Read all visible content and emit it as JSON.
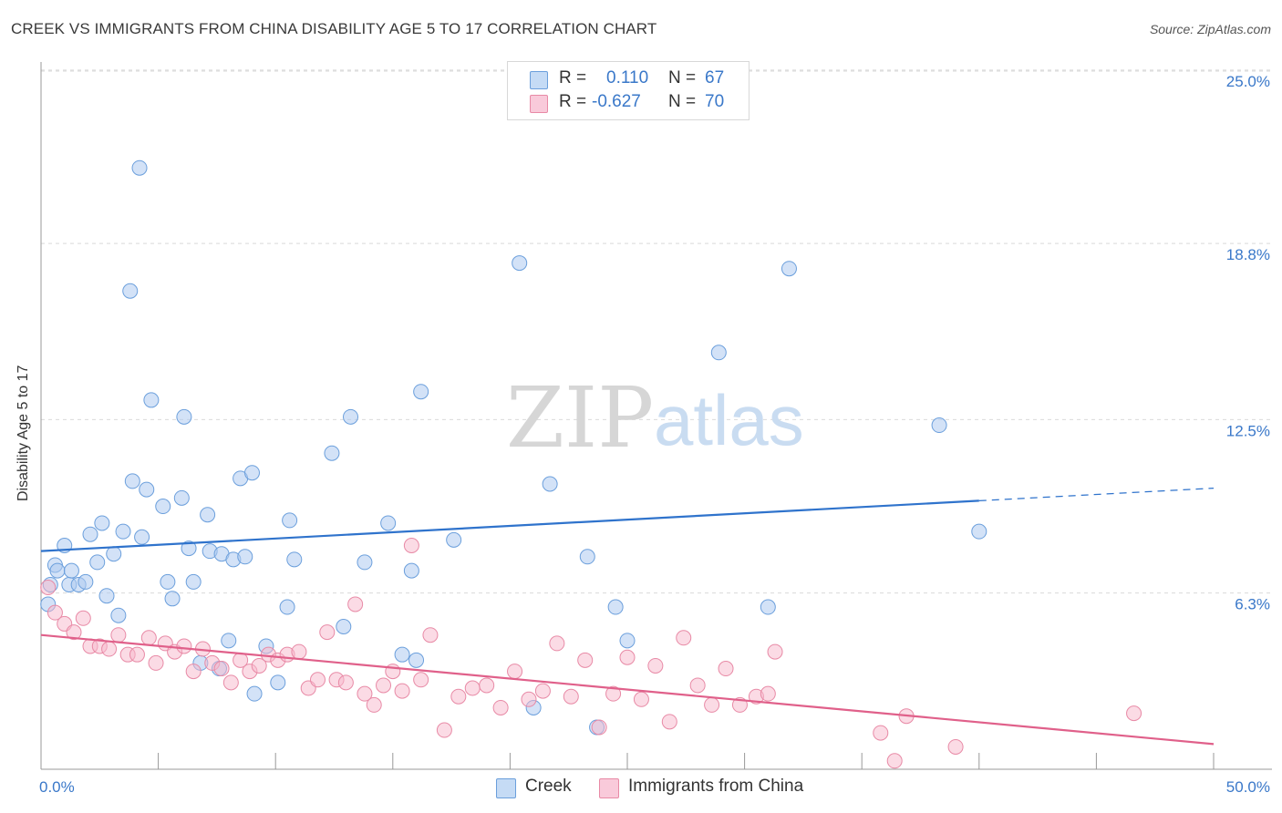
{
  "header": {
    "title": "CREEK VS IMMIGRANTS FROM CHINA DISABILITY AGE 5 TO 17 CORRELATION CHART",
    "source": "Source: ZipAtlas.com"
  },
  "watermark": {
    "zip": "ZIP",
    "atlas": "atlas"
  },
  "legend_top": {
    "rows": [
      {
        "r_label": "R =",
        "r_value": "0.110",
        "n_label": "N =",
        "n_value": "67"
      },
      {
        "r_label": "R =",
        "r_value": "-0.627",
        "n_label": "N =",
        "n_value": "70"
      }
    ]
  },
  "legend_bottom": {
    "creek": "Creek",
    "china": "Immigrants from China"
  },
  "colors": {
    "creek_fill": "#aecbf0",
    "creek_stroke": "#6b9fdc",
    "creek_line": "#2f73cc",
    "china_fill": "#f7b8cc",
    "china_stroke": "#e88aa6",
    "china_line": "#e0608a",
    "tick_text": "#3a78c9",
    "grid": "#d9d9d9"
  },
  "chart_data": {
    "type": "scatter",
    "title": "CREEK VS IMMIGRANTS FROM CHINA DISABILITY AGE 5 TO 17 CORRELATION CHART",
    "xlabel": "",
    "ylabel": "Disability Age 5 to 17",
    "xlim": [
      0,
      50
    ],
    "ylim": [
      0,
      26.2
    ],
    "x_tick_labels": [
      {
        "value": 0,
        "label": "0.0%"
      },
      {
        "value": 50,
        "label": "50.0%"
      }
    ],
    "y_tick_labels": [
      {
        "value": 6.3,
        "label": "6.3%"
      },
      {
        "value": 12.5,
        "label": "12.5%"
      },
      {
        "value": 18.8,
        "label": "18.8%"
      },
      {
        "value": 25.0,
        "label": "25.0%"
      }
    ],
    "grid": true,
    "legend_position": "top-center",
    "series": [
      {
        "name": "Creek",
        "r": 0.11,
        "n": 67,
        "trend": {
          "x0": 0,
          "y0": 7.8,
          "x1": 40,
          "y1": 9.6,
          "dashed_to_x": 50,
          "dashed_to_y": 10.05
        },
        "points": [
          [
            0.3,
            5.9
          ],
          [
            0.4,
            6.6
          ],
          [
            0.6,
            7.3
          ],
          [
            0.7,
            7.1
          ],
          [
            1.0,
            8.0
          ],
          [
            1.2,
            6.6
          ],
          [
            1.3,
            7.1
          ],
          [
            1.6,
            6.6
          ],
          [
            1.9,
            6.7
          ],
          [
            2.1,
            8.4
          ],
          [
            2.4,
            7.4
          ],
          [
            2.6,
            8.8
          ],
          [
            2.8,
            6.2
          ],
          [
            3.1,
            7.7
          ],
          [
            3.3,
            5.5
          ],
          [
            3.5,
            8.5
          ],
          [
            3.8,
            17.1
          ],
          [
            3.9,
            10.3
          ],
          [
            4.2,
            21.5
          ],
          [
            4.3,
            8.3
          ],
          [
            4.5,
            10.0
          ],
          [
            4.7,
            13.2
          ],
          [
            5.2,
            9.4
          ],
          [
            5.4,
            6.7
          ],
          [
            5.6,
            6.1
          ],
          [
            6.0,
            9.7
          ],
          [
            6.1,
            12.6
          ],
          [
            6.3,
            7.9
          ],
          [
            6.5,
            6.7
          ],
          [
            6.8,
            3.8
          ],
          [
            7.1,
            9.1
          ],
          [
            7.2,
            7.8
          ],
          [
            7.6,
            3.6
          ],
          [
            7.7,
            7.7
          ],
          [
            8.0,
            4.6
          ],
          [
            8.2,
            7.5
          ],
          [
            8.5,
            10.4
          ],
          [
            8.7,
            7.6
          ],
          [
            9.0,
            10.6
          ],
          [
            9.1,
            2.7
          ],
          [
            9.6,
            4.4
          ],
          [
            10.1,
            3.1
          ],
          [
            10.5,
            5.8
          ],
          [
            10.6,
            8.9
          ],
          [
            10.8,
            7.5
          ],
          [
            12.4,
            11.3
          ],
          [
            12.9,
            5.1
          ],
          [
            13.2,
            12.6
          ],
          [
            13.8,
            7.4
          ],
          [
            14.8,
            8.8
          ],
          [
            15.4,
            4.1
          ],
          [
            15.8,
            7.1
          ],
          [
            16.0,
            3.9
          ],
          [
            16.2,
            13.5
          ],
          [
            17.6,
            8.2
          ],
          [
            20.4,
            18.1
          ],
          [
            21.0,
            2.2
          ],
          [
            21.7,
            10.2
          ],
          [
            23.3,
            7.6
          ],
          [
            23.7,
            1.5
          ],
          [
            24.5,
            5.8
          ],
          [
            25.0,
            4.6
          ],
          [
            28.9,
            14.9
          ],
          [
            31.0,
            5.8
          ],
          [
            31.9,
            17.9
          ],
          [
            38.3,
            12.3
          ],
          [
            40.0,
            8.5
          ]
        ]
      },
      {
        "name": "Immigrants from China",
        "r": -0.627,
        "n": 70,
        "trend": {
          "x0": 0,
          "y0": 4.8,
          "x1": 50,
          "y1": 0.9
        },
        "points": [
          [
            0.3,
            6.5
          ],
          [
            0.6,
            5.6
          ],
          [
            1.0,
            5.2
          ],
          [
            1.4,
            4.9
          ],
          [
            1.8,
            5.4
          ],
          [
            2.1,
            4.4
          ],
          [
            2.5,
            4.4
          ],
          [
            2.9,
            4.3
          ],
          [
            3.3,
            4.8
          ],
          [
            3.7,
            4.1
          ],
          [
            4.1,
            4.1
          ],
          [
            4.6,
            4.7
          ],
          [
            4.9,
            3.8
          ],
          [
            5.3,
            4.5
          ],
          [
            5.7,
            4.2
          ],
          [
            6.1,
            4.4
          ],
          [
            6.5,
            3.5
          ],
          [
            6.9,
            4.3
          ],
          [
            7.3,
            3.8
          ],
          [
            7.7,
            3.6
          ],
          [
            8.1,
            3.1
          ],
          [
            8.5,
            3.9
          ],
          [
            8.9,
            3.5
          ],
          [
            9.3,
            3.7
          ],
          [
            9.7,
            4.1
          ],
          [
            10.1,
            3.9
          ],
          [
            10.5,
            4.1
          ],
          [
            11.0,
            4.2
          ],
          [
            11.4,
            2.9
          ],
          [
            11.8,
            3.2
          ],
          [
            12.2,
            4.9
          ],
          [
            12.6,
            3.2
          ],
          [
            13.0,
            3.1
          ],
          [
            13.4,
            5.9
          ],
          [
            13.8,
            2.7
          ],
          [
            14.2,
            2.3
          ],
          [
            14.6,
            3.0
          ],
          [
            15.0,
            3.5
          ],
          [
            15.4,
            2.8
          ],
          [
            15.8,
            8.0
          ],
          [
            16.2,
            3.2
          ],
          [
            16.6,
            4.8
          ],
          [
            17.2,
            1.4
          ],
          [
            17.8,
            2.6
          ],
          [
            18.4,
            2.9
          ],
          [
            19.0,
            3.0
          ],
          [
            19.6,
            2.2
          ],
          [
            20.2,
            3.5
          ],
          [
            20.8,
            2.5
          ],
          [
            21.4,
            2.8
          ],
          [
            22.0,
            4.5
          ],
          [
            22.6,
            2.6
          ],
          [
            23.2,
            3.9
          ],
          [
            23.8,
            1.5
          ],
          [
            24.4,
            2.7
          ],
          [
            25.0,
            4.0
          ],
          [
            25.6,
            2.5
          ],
          [
            26.2,
            3.7
          ],
          [
            26.8,
            1.7
          ],
          [
            27.4,
            4.7
          ],
          [
            28.0,
            3.0
          ],
          [
            28.6,
            2.3
          ],
          [
            29.2,
            3.6
          ],
          [
            29.8,
            2.3
          ],
          [
            30.5,
            2.6
          ],
          [
            31.3,
            4.2
          ],
          [
            35.8,
            1.3
          ],
          [
            36.9,
            1.9
          ],
          [
            39.0,
            0.8
          ],
          [
            46.6,
            2.0
          ]
        ]
      }
    ]
  },
  "extra_points": {
    "china_small_markers": [
      [
        31.0,
        2.7
      ],
      [
        36.4,
        0.3
      ]
    ]
  }
}
